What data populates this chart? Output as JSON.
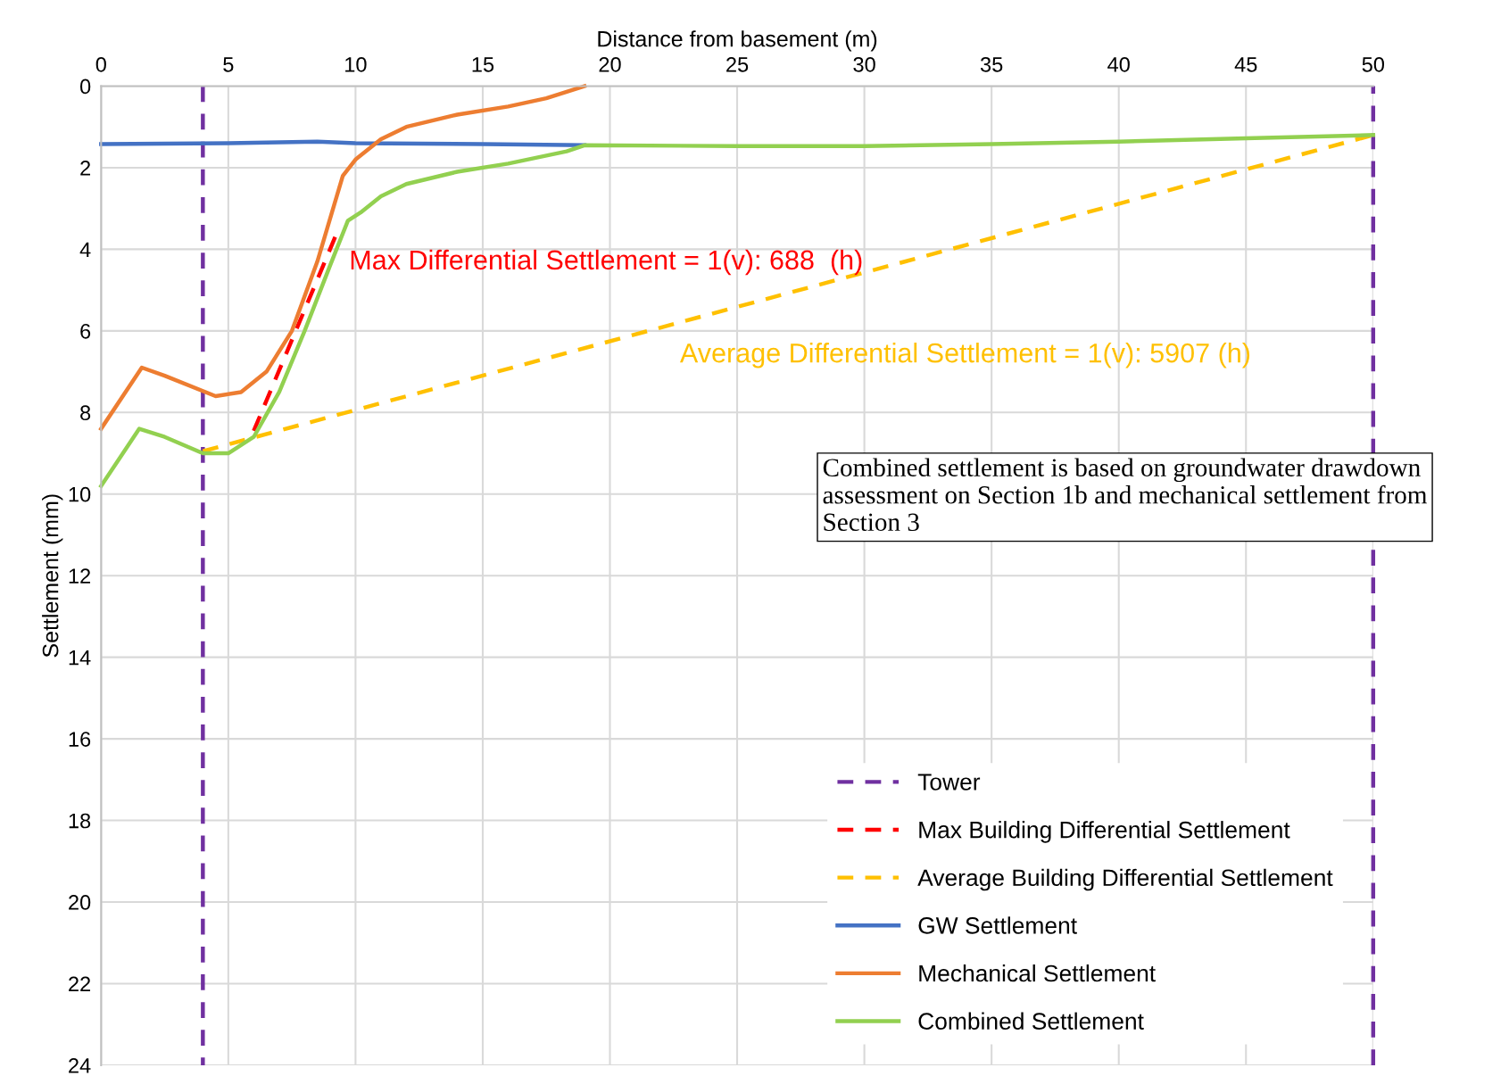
{
  "chart_data": {
    "type": "line",
    "xlabel": "Distance from basement (m)",
    "ylabel": "Settlement (mm)",
    "xlim": [
      0,
      50
    ],
    "xticks": [
      0,
      5,
      10,
      15,
      20,
      25,
      30,
      35,
      40,
      45,
      50
    ],
    "ylim": [
      24,
      0
    ],
    "yticks": [
      0,
      2,
      4,
      6,
      8,
      10,
      12,
      14,
      16,
      18,
      20,
      22,
      24
    ],
    "grid": true,
    "legend": "bottom right",
    "marker": "none",
    "ref_lines": [
      {
        "axis": "x",
        "value": 50,
        "color": "#7030a0",
        "line_style": "dashed"
      }
    ],
    "series": [
      {
        "name": "Tower",
        "color": "#7030a0",
        "line_style": "dashed",
        "x": [
          4,
          4
        ],
        "values": [
          0,
          24
        ]
      },
      {
        "name": "Max Building Differential Settlement",
        "color": "#ff0000",
        "line_style": "dashed",
        "x": [
          6,
          9.2
        ],
        "values": [
          8.45,
          3.7
        ]
      },
      {
        "name": "Average Building Differential Settlement",
        "color": "#ffc000",
        "line_style": "dashed",
        "x": [
          4,
          50
        ],
        "values": [
          8.95,
          1.2
        ]
      },
      {
        "name": "GW Settlement",
        "color": "#4472c4",
        "line_style": "solid",
        "x": [
          0,
          5,
          8.5,
          10,
          15,
          19
        ],
        "values": [
          1.42,
          1.4,
          1.36,
          1.4,
          1.42,
          1.45
        ]
      },
      {
        "name": "Mechanical Settlement",
        "color": "#ed7d31",
        "line_style": "solid",
        "x": [
          0,
          1.6,
          2.5,
          4.5,
          5.5,
          6.5,
          7.5,
          8.5,
          9.5,
          10,
          11,
          12,
          14,
          16,
          17.5,
          19
        ],
        "values": [
          8.4,
          6.9,
          7.1,
          7.6,
          7.5,
          7.0,
          6.0,
          4.3,
          2.2,
          1.8,
          1.3,
          1.0,
          0.7,
          0.5,
          0.3,
          0
        ]
      },
      {
        "name": "Combined Settlement",
        "color": "#92d050",
        "line_style": "solid",
        "x": [
          0,
          1.5,
          2.5,
          4,
          5,
          6,
          7,
          8,
          9,
          9.7,
          10.2,
          11,
          12,
          14,
          16,
          18.3,
          19,
          25,
          30,
          35,
          40,
          45,
          50
        ],
        "values": [
          9.8,
          8.4,
          8.6,
          9.0,
          9.0,
          8.6,
          7.5,
          6.0,
          4.4,
          3.3,
          3.1,
          2.7,
          2.4,
          2.1,
          1.9,
          1.6,
          1.45,
          1.47,
          1.47,
          1.42,
          1.36,
          1.28,
          1.2
        ]
      }
    ],
    "annotations": [
      "Max Differential Settlement = 1(v): 688  (h)",
      "Average Differential Settlement = 1(v): 5907 (h)",
      "Combined settlement is based on groundwater drawdown assessment on Section 1b and mechanical settlement from Section 3"
    ]
  }
}
